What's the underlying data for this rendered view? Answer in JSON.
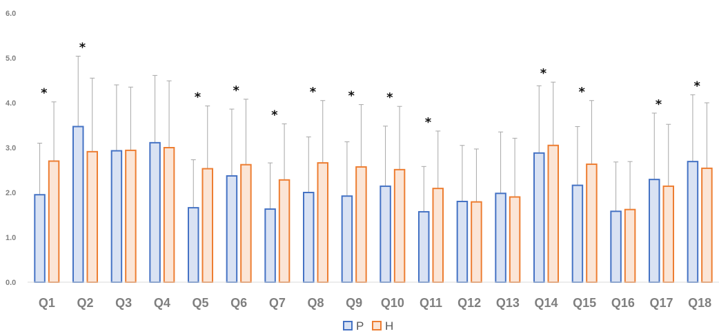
{
  "chart_data": {
    "type": "bar",
    "categories": [
      "Q1",
      "Q2",
      "Q3",
      "Q4",
      "Q5",
      "Q6",
      "Q7",
      "Q8",
      "Q9",
      "Q10",
      "Q11",
      "Q12",
      "Q13",
      "Q14",
      "Q15",
      "Q16",
      "Q17",
      "Q18"
    ],
    "series": [
      {
        "name": "P",
        "values": [
          1.95,
          3.47,
          2.93,
          3.11,
          1.66,
          2.37,
          1.63,
          2.0,
          1.92,
          2.14,
          1.57,
          1.8,
          1.98,
          2.88,
          2.16,
          1.58,
          2.29,
          2.69
        ],
        "error_upper": [
          3.1,
          5.04,
          4.4,
          4.61,
          2.73,
          3.86,
          2.66,
          3.24,
          3.13,
          3.48,
          2.58,
          3.05,
          3.35,
          4.38,
          3.47,
          2.68,
          3.77,
          4.18
        ],
        "fill": "#d9e2f3",
        "stroke": "#4472c4"
      },
      {
        "name": "H",
        "values": [
          2.7,
          2.91,
          2.94,
          3.0,
          2.53,
          2.62,
          2.28,
          2.66,
          2.57,
          2.51,
          2.09,
          1.79,
          1.9,
          3.05,
          2.63,
          1.62,
          2.14,
          2.54
        ],
        "error_upper": [
          4.02,
          4.55,
          4.35,
          4.49,
          3.93,
          4.08,
          3.53,
          4.05,
          3.96,
          3.92,
          3.37,
          2.97,
          3.21,
          4.46,
          4.05,
          2.69,
          3.52,
          4.0
        ],
        "fill": "#fbe5d6",
        "stroke": "#ed7d31"
      }
    ],
    "significant": [
      true,
      true,
      false,
      false,
      true,
      true,
      true,
      true,
      true,
      true,
      true,
      false,
      false,
      true,
      true,
      false,
      true,
      true
    ],
    "significance_marker": "*",
    "yticks": [
      "0.0",
      "1.0",
      "2.0",
      "3.0",
      "4.0",
      "5.0",
      "6.0"
    ],
    "ylim": [
      0,
      6
    ],
    "title": "",
    "xlabel": "",
    "ylabel": "",
    "grid": false,
    "legend_position": "bottom-center",
    "error_bar_color": "#a6a6a6"
  }
}
